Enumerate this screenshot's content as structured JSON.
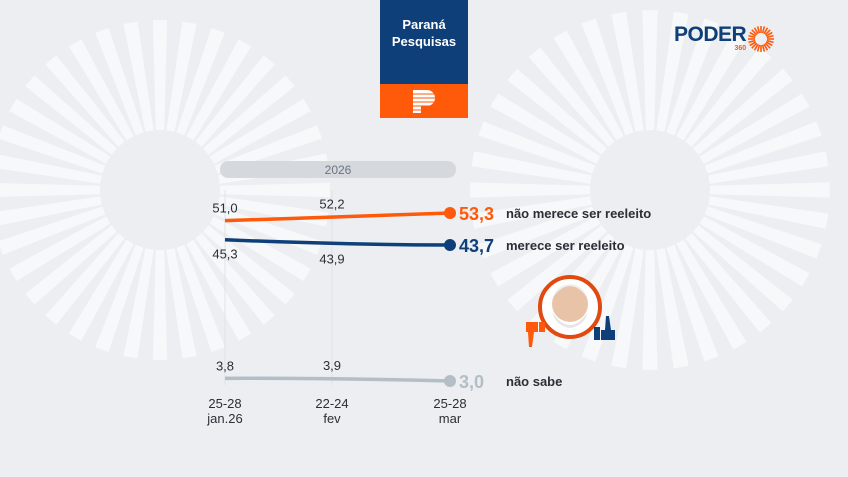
{
  "brand": {
    "line1": "Paraná",
    "line2": "Pesquisas"
  },
  "logo": {
    "word": "PODER",
    "number": "360"
  },
  "colors": {
    "orange": "#ff5a0a",
    "blue": "#0e3f78",
    "gray": "#b4bec6"
  },
  "chart_data": {
    "type": "line",
    "period_label": "2026",
    "categories": [
      [
        "25-28",
        "jan.26"
      ],
      [
        "22-24",
        "fev"
      ],
      [
        "25-28",
        "mar"
      ]
    ],
    "series": [
      {
        "name": "não merece ser reeleito",
        "values": [
          51.0,
          52.2,
          53.3
        ],
        "labels": [
          "51,0",
          "52,2",
          "53,3"
        ],
        "color": "#ff5a0a"
      },
      {
        "name": "merece ser reeleito",
        "values": [
          45.3,
          43.9,
          43.7
        ],
        "labels": [
          "45,3",
          "43,9",
          "43,7"
        ],
        "color": "#0e3f78"
      },
      {
        "name": "não sabe",
        "values": [
          3.8,
          3.9,
          3.0
        ],
        "labels": [
          "3,8",
          "3,9",
          "3,0"
        ],
        "color": "#b4bec6"
      }
    ]
  }
}
